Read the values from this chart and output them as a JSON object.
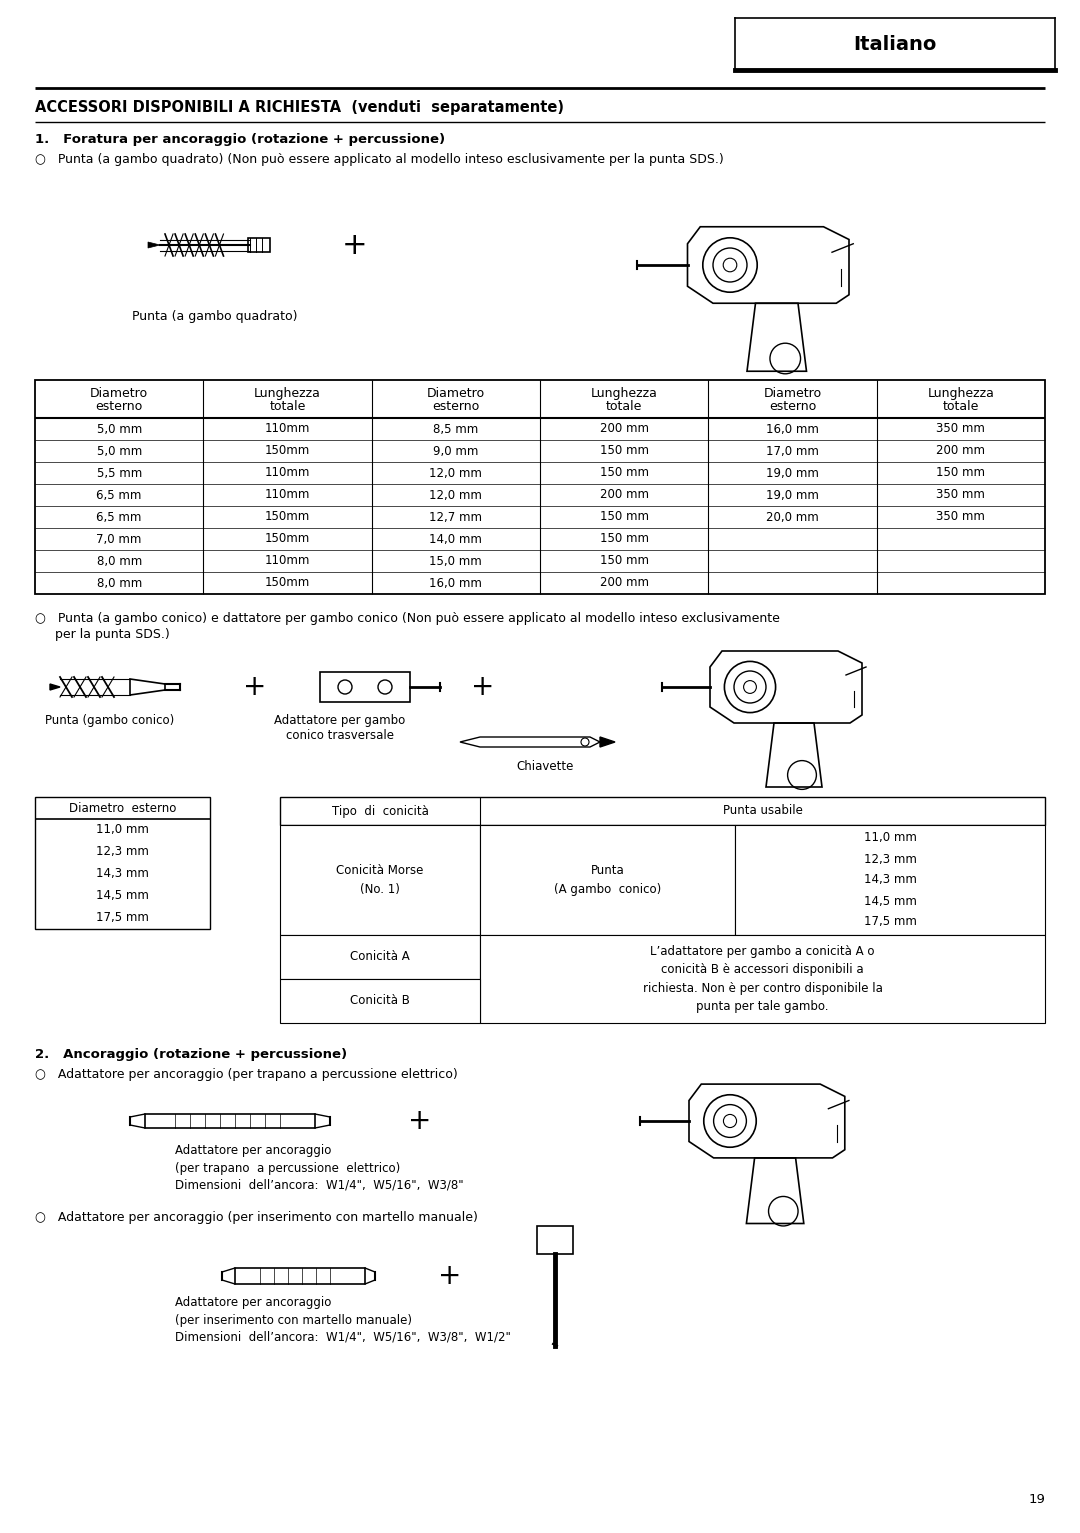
{
  "page_bg": "#ffffff",
  "header_text": "Italiano",
  "section_title": "ACCESSORI DISPONIBILI A RICHIESTA  (venduti  separatamente)",
  "section1_title": "1.   Foratura per ancoraggio (rotazione + percussione)",
  "bullet1_line1": "○   Punta (a gambo quadrato) (Non può essere applicato al modello inteso esclusivamente per la punta SDS.)",
  "label_punta_quadrato": "Punta (a gambo quadrato)",
  "plus_sign": "+",
  "table1_headers": [
    "Diametro\nesterno",
    "Lunghezza\ntotale",
    "Diametro\nesterno",
    "Lunghezza\ntotale",
    "Diametro\nesterno",
    "Lunghezza\ntotale"
  ],
  "table1_data": [
    [
      "5,0 mm",
      "110mm",
      "8,5 mm",
      "200 mm",
      "16,0 mm",
      "350 mm"
    ],
    [
      "5,0 mm",
      "150mm",
      "9,0 mm",
      "150 mm",
      "17,0 mm",
      "200 mm"
    ],
    [
      "5,5 mm",
      "110mm",
      "12,0 mm",
      "150 mm",
      "19,0 mm",
      "150 mm"
    ],
    [
      "6,5 mm",
      "110mm",
      "12,0 mm",
      "200 mm",
      "19,0 mm",
      "350 mm"
    ],
    [
      "6,5 mm",
      "150mm",
      "12,7 mm",
      "150 mm",
      "20,0 mm",
      "350 mm"
    ],
    [
      "7,0 mm",
      "150mm",
      "14,0 mm",
      "150 mm",
      "",
      ""
    ],
    [
      "8,0 mm",
      "110mm",
      "15,0 mm",
      "150 mm",
      "",
      ""
    ],
    [
      "8,0 mm",
      "150mm",
      "16,0 mm",
      "200 mm",
      "",
      ""
    ]
  ],
  "bullet2_line1": "○   Punta (a gambo conico) e dattatore per gambo conico (Non può essere applicato al modello inteso exclusivamente",
  "bullet2_line2": "     per la punta SDS.)",
  "label_punta_conico": "Punta (gambo conico)",
  "label_adattatore_conico": "Adattatore per gambo\nconico trasversale",
  "label_chiavette": "Chiavette",
  "table2_left_header": "Diametro  esterno",
  "table2_left_data": [
    "11,0 mm",
    "12,3 mm",
    "14,3 mm",
    "14,5 mm",
    "17,5 mm"
  ],
  "table2_col1_header": "Tipo  di  conicità",
  "table2_col2_header": "Punta usabile",
  "morse_label": "Conicità Morse\n(No. 1)",
  "morse_punta": "Punta\n(A gambo  conico)",
  "morse_sizes": "11,0 mm\n12,3 mm\n14,3 mm\n14,5 mm\n17,5 mm",
  "conicita_a": "Conicità A",
  "conicita_b": "Conicità B",
  "conicita_ab_text": "L’adattatore per gambo a conicità A o\nconicità B è accessori disponibili a\nrichiesta. Non è per contro disponibile la\npunta per tale gambo.",
  "section2_title": "2.   Ancoraggio (rotazione + percussione)",
  "bullet3": "○   Adattatore per ancoraggio (per trapano a percussione elettrico)",
  "label_adatt_anc": "Adattatore per ancoraggio\n(per trapano  a percussione  elettrico)",
  "label_dim1": "Dimensioni  dell’ancora:  W1/4\",  W5/16\",  W3/8\"",
  "bullet4": "○   Adattatore per ancoraggio (per inserimento con martello manuale)",
  "label_adatt_man": "Adattatore per ancoraggio\n(per inserimento con martello manuale)",
  "label_dim2": "Dimensioni  dell’ancora:  W1/4\",  W5/16\",  W3/8\",  W1/2\"",
  "page_number": "19"
}
